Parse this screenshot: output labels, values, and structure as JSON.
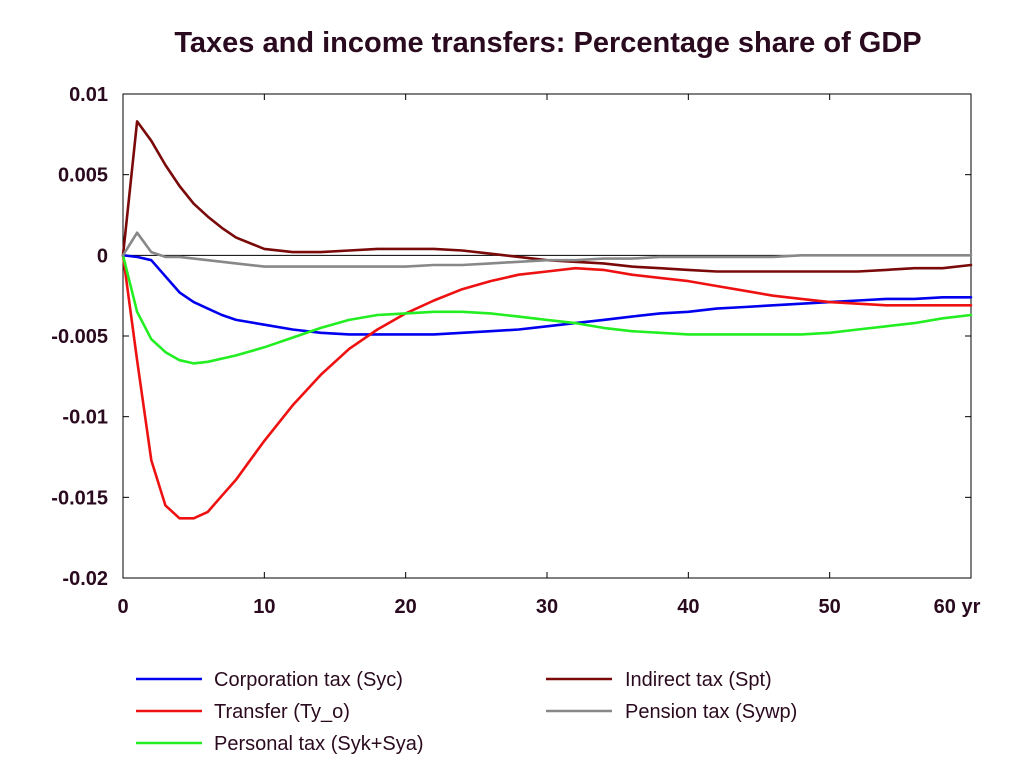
{
  "chart_data": {
    "type": "line",
    "title": "Taxes and income transfers: Percentage share of GDP",
    "xlabel": "",
    "ylabel": "",
    "x_unit": "yr",
    "xlim": [
      0,
      60
    ],
    "ylim": [
      -0.02,
      0.01
    ],
    "x_ticks": [
      0,
      10,
      20,
      30,
      40,
      50,
      60
    ],
    "x_tick_labels": [
      "0",
      "10",
      "20",
      "30",
      "40",
      "50",
      "60 yr"
    ],
    "y_ticks": [
      0.01,
      0.005,
      0,
      -0.005,
      -0.01,
      -0.015,
      -0.02
    ],
    "y_tick_labels": [
      "0.01",
      "0.005",
      "0",
      "-0.005",
      "-0.01",
      "-0.015",
      "-0.02"
    ],
    "grid": false,
    "zero_line": true,
    "legend_position": "bottom",
    "series": [
      {
        "name": "Corporation tax (Syc)",
        "color": "#0000ee",
        "x": [
          0,
          1,
          2,
          3,
          4,
          5,
          6,
          7,
          8,
          10,
          12,
          14,
          16,
          18,
          20,
          22,
          24,
          26,
          28,
          30,
          32,
          34,
          36,
          38,
          40,
          42,
          44,
          46,
          48,
          50,
          52,
          54,
          56,
          58,
          60
        ],
        "y": [
          0,
          -0.0001,
          -0.0003,
          -0.0013,
          -0.0023,
          -0.0029,
          -0.0033,
          -0.0037,
          -0.004,
          -0.0043,
          -0.0046,
          -0.0048,
          -0.0049,
          -0.0049,
          -0.0049,
          -0.0049,
          -0.0048,
          -0.0047,
          -0.0046,
          -0.0044,
          -0.0042,
          -0.004,
          -0.0038,
          -0.0036,
          -0.0035,
          -0.0033,
          -0.0032,
          -0.0031,
          -0.003,
          -0.0029,
          -0.0028,
          -0.0027,
          -0.0027,
          -0.0026,
          -0.0026
        ]
      },
      {
        "name": "Transfer (Ty_o)",
        "color": "#ee1111",
        "x": [
          0,
          1,
          2,
          3,
          4,
          5,
          6,
          7,
          8,
          9,
          10,
          12,
          14,
          16,
          18,
          20,
          22,
          24,
          26,
          28,
          30,
          32,
          34,
          36,
          38,
          40,
          42,
          44,
          46,
          48,
          50,
          52,
          54,
          56,
          58,
          60
        ],
        "y": [
          0,
          -0.0065,
          -0.0127,
          -0.0155,
          -0.0163,
          -0.0163,
          -0.0159,
          -0.0149,
          -0.0139,
          -0.0127,
          -0.0115,
          -0.0093,
          -0.0074,
          -0.0058,
          -0.0046,
          -0.0036,
          -0.0028,
          -0.0021,
          -0.0016,
          -0.0012,
          -0.001,
          -0.0008,
          -0.0009,
          -0.0012,
          -0.0014,
          -0.0016,
          -0.0019,
          -0.0022,
          -0.0025,
          -0.0027,
          -0.0029,
          -0.003,
          -0.0031,
          -0.0031,
          -0.0031,
          -0.0031
        ]
      },
      {
        "name": "Personal tax (Syk+Sya)",
        "color": "#22ee22",
        "x": [
          0,
          1,
          2,
          3,
          4,
          5,
          6,
          7,
          8,
          10,
          12,
          14,
          16,
          18,
          20,
          22,
          24,
          26,
          28,
          30,
          32,
          34,
          36,
          38,
          40,
          42,
          44,
          46,
          48,
          50,
          52,
          54,
          56,
          58,
          60
        ],
        "y": [
          0,
          -0.0035,
          -0.0052,
          -0.006,
          -0.0065,
          -0.0067,
          -0.0066,
          -0.0064,
          -0.0062,
          -0.0057,
          -0.0051,
          -0.0045,
          -0.004,
          -0.0037,
          -0.0036,
          -0.0035,
          -0.0035,
          -0.0036,
          -0.0038,
          -0.004,
          -0.0042,
          -0.0045,
          -0.0047,
          -0.0048,
          -0.0049,
          -0.0049,
          -0.0049,
          -0.0049,
          -0.0049,
          -0.0048,
          -0.0046,
          -0.0044,
          -0.0042,
          -0.0039,
          -0.0037
        ]
      },
      {
        "name": "Indirect tax (Spt)",
        "color": "#7a0a0a",
        "x": [
          0,
          1,
          2,
          3,
          4,
          5,
          6,
          7,
          8,
          10,
          12,
          14,
          16,
          18,
          20,
          22,
          24,
          26,
          28,
          30,
          32,
          34,
          36,
          38,
          40,
          42,
          44,
          46,
          48,
          50,
          52,
          54,
          56,
          58,
          60
        ],
        "y": [
          0,
          0.0083,
          0.0071,
          0.0056,
          0.0043,
          0.0032,
          0.0024,
          0.0017,
          0.0011,
          0.0004,
          0.0002,
          0.0002,
          0.0003,
          0.0004,
          0.0004,
          0.0004,
          0.0003,
          0.0001,
          -0.0001,
          -0.0003,
          -0.0004,
          -0.0005,
          -0.0007,
          -0.0008,
          -0.0009,
          -0.001,
          -0.001,
          -0.001,
          -0.001,
          -0.001,
          -0.001,
          -0.0009,
          -0.0008,
          -0.0008,
          -0.0006
        ]
      },
      {
        "name": "Pension tax (Sywp)",
        "color": "#888888",
        "x": [
          0,
          1,
          2,
          3,
          4,
          5,
          6,
          8,
          10,
          12,
          14,
          16,
          18,
          20,
          22,
          24,
          26,
          28,
          30,
          32,
          34,
          36,
          38,
          40,
          42,
          44,
          46,
          48,
          50,
          52,
          54,
          56,
          58,
          60
        ],
        "y": [
          0,
          0.0014,
          0.0002,
          -0.0001,
          -0.0001,
          -0.0002,
          -0.0003,
          -0.0005,
          -0.0007,
          -0.0007,
          -0.0007,
          -0.0007,
          -0.0007,
          -0.0007,
          -0.0006,
          -0.0006,
          -0.0005,
          -0.0004,
          -0.0003,
          -0.0003,
          -0.0002,
          -0.0002,
          -0.0001,
          -0.0001,
          -0.0001,
          -0.0001,
          -0.0001,
          0,
          0,
          0,
          0,
          0,
          0,
          0
        ]
      }
    ]
  }
}
